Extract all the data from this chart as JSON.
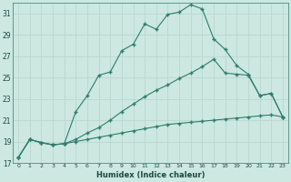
{
  "xlabel": "Humidex (Indice chaleur)",
  "background_color": "#cce8e0",
  "grid_color": "#b8d8d0",
  "line_color": "#2e7d6e",
  "xlim": [
    -0.5,
    23.5
  ],
  "ylim": [
    17,
    32
  ],
  "xticks": [
    0,
    1,
    2,
    3,
    4,
    5,
    6,
    7,
    8,
    9,
    10,
    11,
    12,
    13,
    14,
    15,
    16,
    17,
    18,
    19,
    20,
    21,
    22,
    23
  ],
  "yticks": [
    17,
    19,
    21,
    23,
    25,
    27,
    29,
    31
  ],
  "curve1_x": [
    0,
    1,
    2,
    3,
    4,
    5,
    6,
    7,
    8,
    9,
    10,
    11,
    12,
    13,
    14,
    15,
    16,
    17,
    18,
    19,
    20,
    21,
    22,
    23
  ],
  "curve1_y": [
    17.5,
    19.2,
    18.9,
    18.7,
    18.8,
    21.8,
    23.3,
    25.2,
    25.5,
    27.5,
    28.1,
    30.0,
    29.5,
    30.9,
    31.1,
    31.8,
    31.4,
    28.6,
    27.6,
    26.1,
    25.3,
    23.3,
    23.5,
    21.3
  ],
  "curve2_x": [
    0,
    1,
    2,
    3,
    4,
    5,
    6,
    7,
    8,
    9,
    10,
    11,
    12,
    13,
    14,
    15,
    16,
    17,
    18,
    19,
    20,
    21,
    22,
    23
  ],
  "curve2_y": [
    17.5,
    19.2,
    18.9,
    18.7,
    18.8,
    19.2,
    19.8,
    20.3,
    21.0,
    21.8,
    22.5,
    23.2,
    23.8,
    24.3,
    24.9,
    25.4,
    26.0,
    26.7,
    25.4,
    25.3,
    25.2,
    23.3,
    23.5,
    21.3
  ],
  "curve3_x": [
    0,
    1,
    2,
    3,
    4,
    5,
    6,
    7,
    8,
    9,
    10,
    11,
    12,
    13,
    14,
    15,
    16,
    17,
    18,
    19,
    20,
    21,
    22,
    23
  ],
  "curve3_y": [
    17.5,
    19.2,
    18.9,
    18.7,
    18.8,
    19.0,
    19.2,
    19.4,
    19.6,
    19.8,
    20.0,
    20.2,
    20.4,
    20.6,
    20.7,
    20.8,
    20.9,
    21.0,
    21.1,
    21.2,
    21.3,
    21.4,
    21.5,
    21.3
  ]
}
